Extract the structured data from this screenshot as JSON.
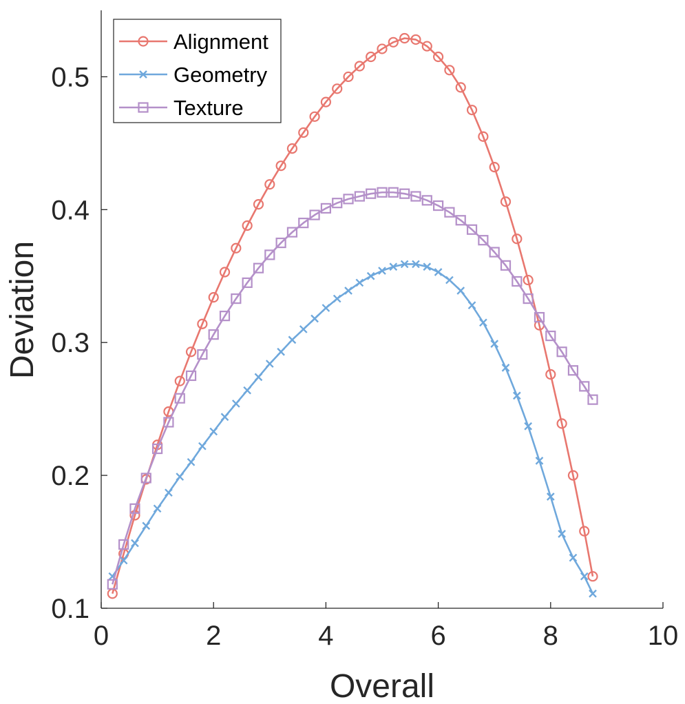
{
  "chart_data": {
    "type": "line",
    "title": "",
    "xlabel": "Overall",
    "ylabel": "Deviation",
    "xlim": [
      0,
      10
    ],
    "ylim": [
      0.1,
      0.55
    ],
    "xticks": [
      0,
      2,
      4,
      6,
      8,
      10
    ],
    "xtick_labels": [
      "0",
      "2",
      "4",
      "6",
      "8",
      "10"
    ],
    "yticks": [
      0.1,
      0.2,
      0.3,
      0.4,
      0.5
    ],
    "ytick_labels": [
      "0.1",
      "0.2",
      "0.3",
      "0.4",
      "0.5"
    ],
    "grid": false,
    "legend_position": "top-left",
    "x": [
      0.2,
      0.4,
      0.6,
      0.8,
      1.0,
      1.2,
      1.4,
      1.6,
      1.8,
      2.0,
      2.2,
      2.4,
      2.6,
      2.8,
      3.0,
      3.2,
      3.4,
      3.6,
      3.8,
      4.0,
      4.2,
      4.4,
      4.6,
      4.8,
      5.0,
      5.2,
      5.4,
      5.6,
      5.8,
      6.0,
      6.2,
      6.4,
      6.6,
      6.8,
      7.0,
      7.2,
      7.4,
      7.6,
      7.8,
      8.0,
      8.2,
      8.4,
      8.6,
      8.75
    ],
    "series": [
      {
        "name": "Alignment",
        "color": "#e8776f",
        "marker": "circle",
        "values": [
          0.111,
          0.141,
          0.17,
          0.197,
          0.223,
          0.248,
          0.271,
          0.293,
          0.314,
          0.334,
          0.353,
          0.371,
          0.388,
          0.404,
          0.419,
          0.433,
          0.446,
          0.458,
          0.47,
          0.481,
          0.491,
          0.5,
          0.508,
          0.515,
          0.521,
          0.526,
          0.529,
          0.528,
          0.523,
          0.515,
          0.505,
          0.492,
          0.475,
          0.455,
          0.432,
          0.406,
          0.378,
          0.347,
          0.313,
          0.276,
          0.239,
          0.2,
          0.158,
          0.124
        ]
      },
      {
        "name": "Geometry",
        "color": "#6fa8dc",
        "marker": "x",
        "values": [
          0.124,
          0.136,
          0.149,
          0.162,
          0.175,
          0.187,
          0.199,
          0.21,
          0.222,
          0.233,
          0.244,
          0.254,
          0.264,
          0.274,
          0.284,
          0.293,
          0.302,
          0.31,
          0.318,
          0.326,
          0.333,
          0.339,
          0.345,
          0.35,
          0.354,
          0.357,
          0.359,
          0.359,
          0.357,
          0.353,
          0.347,
          0.339,
          0.328,
          0.315,
          0.299,
          0.281,
          0.26,
          0.237,
          0.211,
          0.184,
          0.156,
          0.138,
          0.124,
          0.111
        ]
      },
      {
        "name": "Texture",
        "color": "#b490c9",
        "marker": "square",
        "values": [
          0.118,
          0.148,
          0.175,
          0.198,
          0.22,
          0.24,
          0.258,
          0.275,
          0.291,
          0.306,
          0.32,
          0.333,
          0.345,
          0.356,
          0.366,
          0.375,
          0.383,
          0.39,
          0.396,
          0.401,
          0.405,
          0.408,
          0.41,
          0.412,
          0.413,
          0.413,
          0.412,
          0.41,
          0.407,
          0.403,
          0.398,
          0.392,
          0.385,
          0.377,
          0.368,
          0.358,
          0.346,
          0.333,
          0.319,
          0.305,
          0.293,
          0.279,
          0.267,
          0.257
        ]
      }
    ]
  }
}
